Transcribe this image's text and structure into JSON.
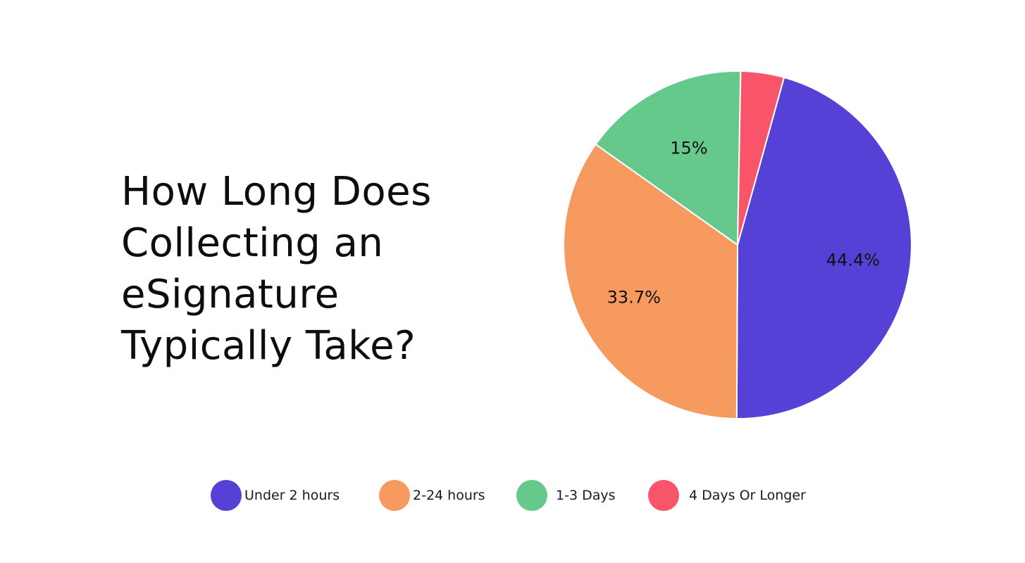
{
  "chart_data": {
    "type": "pie",
    "title_lines": [
      "How Long Does",
      "Collecting an",
      "eSignature",
      "Typically Take?"
    ],
    "categories": [
      "Under 2 hours",
      "2-24 hours",
      "1-3 Days",
      "4 Days Or Longer"
    ],
    "values": [
      44.4,
      33.7,
      15,
      3.9
    ],
    "data_labels": [
      "44.4%",
      "33.7%",
      "15%",
      ""
    ],
    "colors": [
      "#5541d6",
      "#f79a60",
      "#66c98c",
      "#f8546a"
    ],
    "legend_position": "bottom"
  }
}
